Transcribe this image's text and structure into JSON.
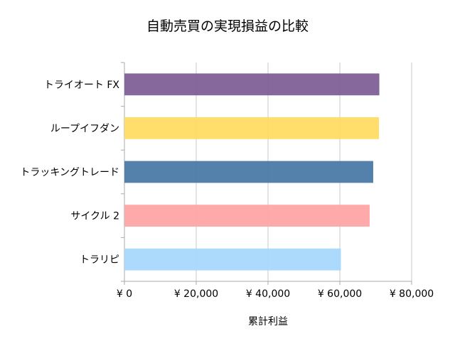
{
  "chart_data": {
    "type": "bar",
    "orientation": "horizontal",
    "title": "自動売買の実現損益の比較",
    "xlabel": "累計利益",
    "ylabel": "",
    "categories": [
      "トライオート FX",
      "ループイフダン",
      "トラッキングトレード",
      "サイクル 2",
      "トラリピ"
    ],
    "values": [
      71000,
      70900,
      69300,
      68300,
      60300
    ],
    "colors": [
      "#7f6098",
      "#ffdc64",
      "#4a7aa8",
      "#ffa5a5",
      "#a8d8fc"
    ],
    "xlim": [
      0,
      80000
    ],
    "xticks": [
      0,
      20000,
      40000,
      60000,
      80000
    ],
    "xtick_labels": [
      "¥ 0",
      "¥ 20,000",
      "¥ 40,000",
      "¥ 60,000",
      "¥ 80,000"
    ],
    "grid": "vertical",
    "legend": "none"
  }
}
